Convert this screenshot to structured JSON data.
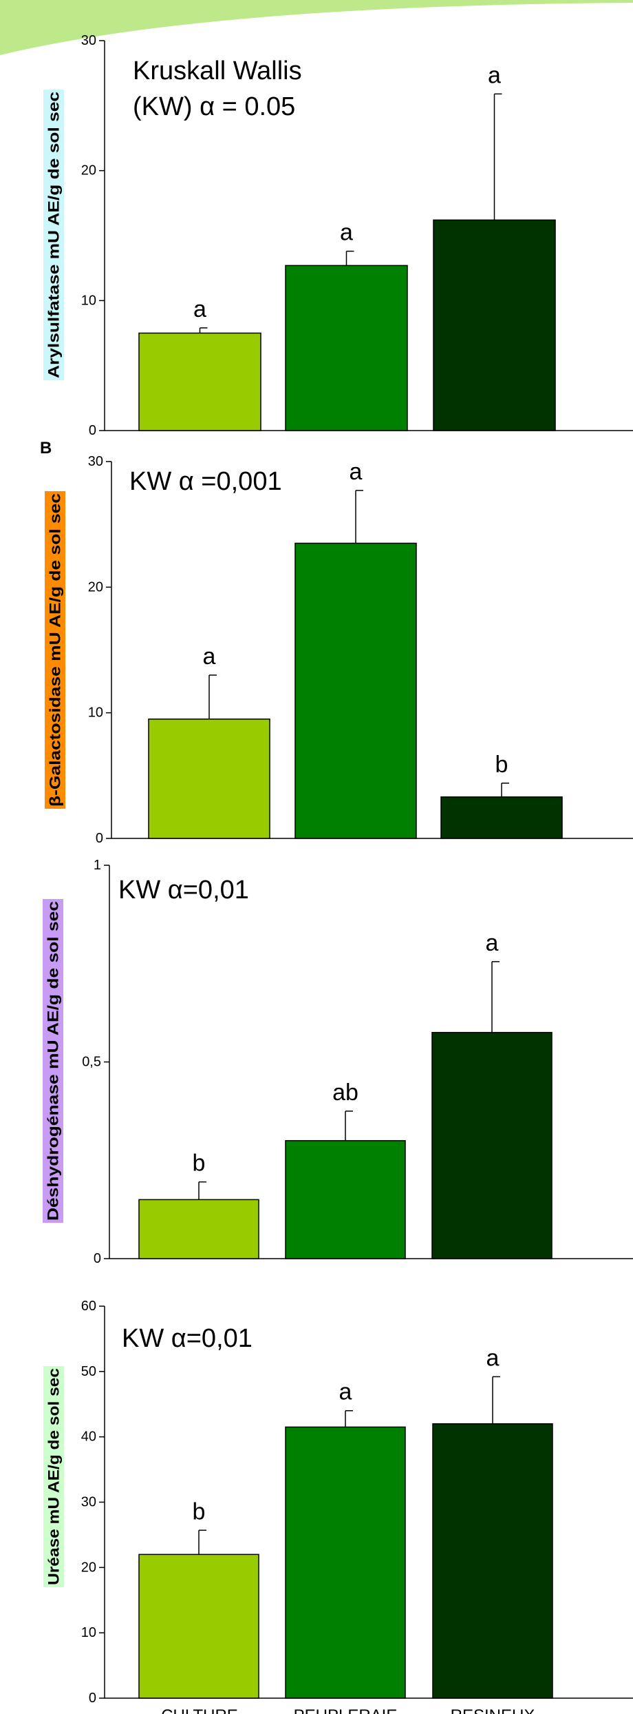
{
  "colors": {
    "culture": "#99cc00",
    "peupleraie": "#008000",
    "resineux": "#003300",
    "banner": "#bde98a"
  },
  "categories": [
    "CULTURE",
    "PEUPLERAIE",
    "RESINEUX"
  ],
  "chart_data": [
    {
      "type": "bar",
      "panel_label": "",
      "ylabel": "Arylsulfatase mU AE/g de sol sec",
      "ylabel_bg": "#ccf7fa",
      "annotation_lines": [
        "Kruskall      Wallis",
        "(KW) α = 0.05"
      ],
      "ylim": [
        0,
        30
      ],
      "yticks": [
        "0",
        "10",
        "20",
        "30"
      ],
      "values": [
        7.5,
        12.7,
        16.2
      ],
      "errors": [
        0.4,
        1.1,
        9.7
      ],
      "letters": [
        "a",
        "a",
        "a"
      ]
    },
    {
      "type": "bar",
      "panel_label": "B",
      "ylabel": "β-Galactosidase mU AE/g de sol sec",
      "ylabel_bg": "#ff8c00",
      "annotation_lines": [
        "KW α =0,001"
      ],
      "ylim": [
        0,
        30
      ],
      "yticks": [
        "0",
        "10",
        "20",
        "30"
      ],
      "values": [
        9.5,
        23.5,
        3.3
      ],
      "errors": [
        3.5,
        4.2,
        1.1
      ],
      "letters": [
        "a",
        "a",
        "b"
      ]
    },
    {
      "type": "bar",
      "panel_label": "",
      "ylabel": "Déshydrogénase mU AE/g de sol sec",
      "ylabel_bg": "#c79cf2",
      "annotation_lines": [
        "KW α=0,01"
      ],
      "ylim": [
        0,
        1
      ],
      "yticks": [
        "0",
        "0,5",
        "1"
      ],
      "values": [
        0.15,
        0.3,
        0.575
      ],
      "errors": [
        0.045,
        0.075,
        0.18
      ],
      "letters": [
        "b",
        "ab",
        "a"
      ]
    },
    {
      "type": "bar",
      "panel_label": "",
      "ylabel": "Uréase mU AE/g de sol sec",
      "ylabel_bg": "#ccffcc",
      "annotation_lines": [
        "KW α=0,01"
      ],
      "ylim": [
        0,
        60
      ],
      "yticks": [
        "0",
        "10",
        "20",
        "30",
        "40",
        "50",
        "60"
      ],
      "values": [
        22,
        41.5,
        42
      ],
      "errors": [
        3.7,
        2.5,
        7.2
      ],
      "letters": [
        "b",
        "a",
        "a"
      ]
    }
  ]
}
